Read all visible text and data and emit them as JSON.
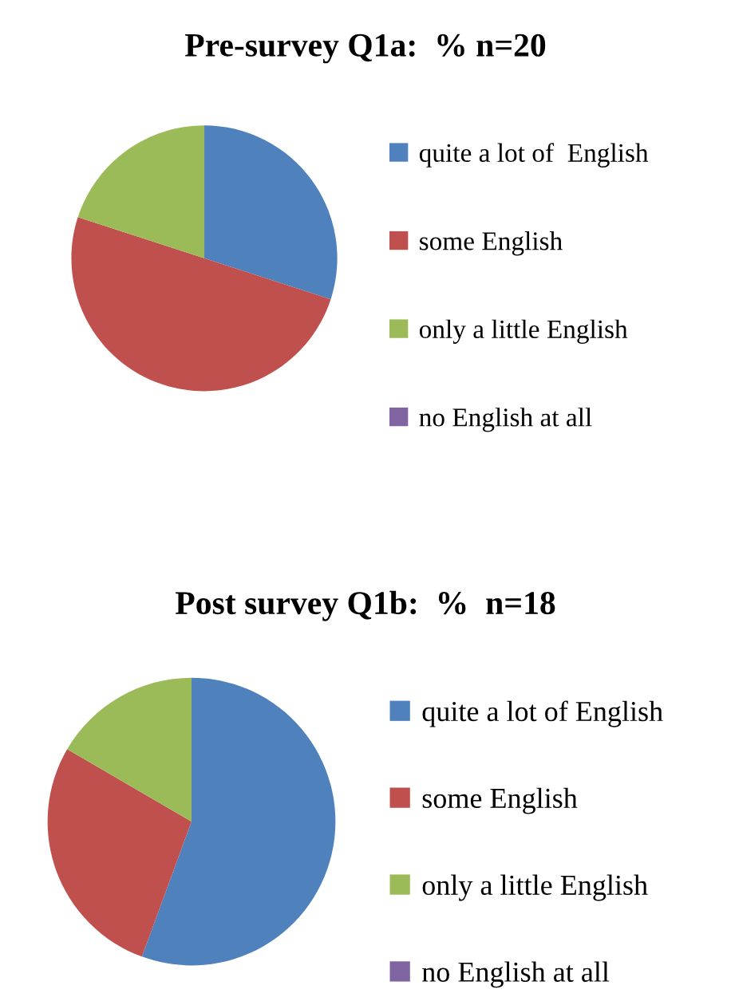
{
  "chart_data": [
    {
      "type": "pie",
      "title": "Pre-survey Q1a:  % n=20",
      "categories": [
        "quite a lot of  English",
        "some English",
        "only a little English",
        "no English at all"
      ],
      "values": [
        30,
        50,
        20,
        0
      ],
      "colors": [
        "#4f81bd",
        "#c0504d",
        "#9bbb59",
        "#8064a2"
      ],
      "legend": "right"
    },
    {
      "type": "pie",
      "title": "Post survey Q1b:  %  n=18",
      "categories": [
        "quite a lot of English",
        "some English",
        "only a little English",
        "no English at all"
      ],
      "values": [
        55.6,
        27.8,
        16.6,
        0
      ],
      "colors": [
        "#4f81bd",
        "#c0504d",
        "#9bbb59",
        "#8064a2"
      ],
      "legend": "right"
    }
  ]
}
